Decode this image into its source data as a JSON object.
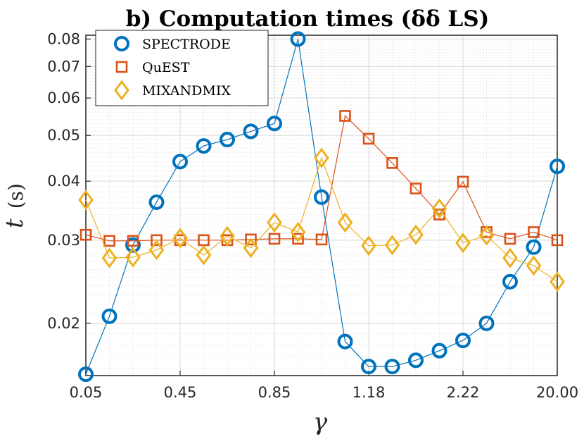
{
  "chart_data": {
    "type": "line",
    "title": "b) Computation times (δδ LS)",
    "xlabel": "γ",
    "ylabel_symbol": "t",
    "ylabel_unit": "(s)",
    "x_tick_labels": [
      "0.05",
      "0.45",
      "0.85",
      "1.18",
      "2.22",
      "20.00"
    ],
    "x_tick_positions": [
      1,
      5,
      9,
      13,
      17,
      21
    ],
    "y_scale": "log",
    "ylim": [
      0.0155,
      0.0815
    ],
    "xlim": [
      1,
      21
    ],
    "y_ticks": [
      0.02,
      0.03,
      0.04,
      0.05,
      0.06,
      0.07,
      0.08
    ],
    "y_tick_labels": [
      "0.02",
      "0.03",
      "0.04",
      "0.05",
      "0.06",
      "0.07",
      "0.08"
    ],
    "grid": true,
    "legend_position": "top-left",
    "x": [
      1,
      2,
      3,
      4,
      5,
      6,
      7,
      8,
      9,
      10,
      11,
      12,
      13,
      14,
      15,
      16,
      17,
      18,
      19,
      20,
      21
    ],
    "series": [
      {
        "name": "SPECTRODE",
        "color": "#0072BD",
        "marker": "circle",
        "values": [
          0.0156,
          0.0207,
          0.0293,
          0.0361,
          0.044,
          0.0475,
          0.049,
          0.051,
          0.053,
          0.08,
          0.037,
          0.0183,
          0.0162,
          0.0162,
          0.0167,
          0.0175,
          0.0184,
          0.02,
          0.0245,
          0.029,
          0.043
        ]
      },
      {
        "name": "QuEST",
        "color": "#D95319",
        "marker": "square",
        "values": [
          0.0308,
          0.0299,
          0.0299,
          0.03,
          0.03,
          0.03,
          0.03,
          0.0301,
          0.0302,
          0.0302,
          0.0301,
          0.055,
          0.0492,
          0.0437,
          0.0386,
          0.034,
          0.0399,
          0.0312,
          0.0302,
          0.0312,
          0.03
        ]
      },
      {
        "name": "MIXANDMIX",
        "color": "#EDB120",
        "marker": "diamond",
        "values": [
          0.0365,
          0.0275,
          0.0276,
          0.0286,
          0.0303,
          0.0279,
          0.0306,
          0.0289,
          0.0327,
          0.0312,
          0.0448,
          0.0327,
          0.0292,
          0.0293,
          0.0308,
          0.035,
          0.0296,
          0.0307,
          0.0275,
          0.0265,
          0.0245
        ]
      }
    ]
  }
}
